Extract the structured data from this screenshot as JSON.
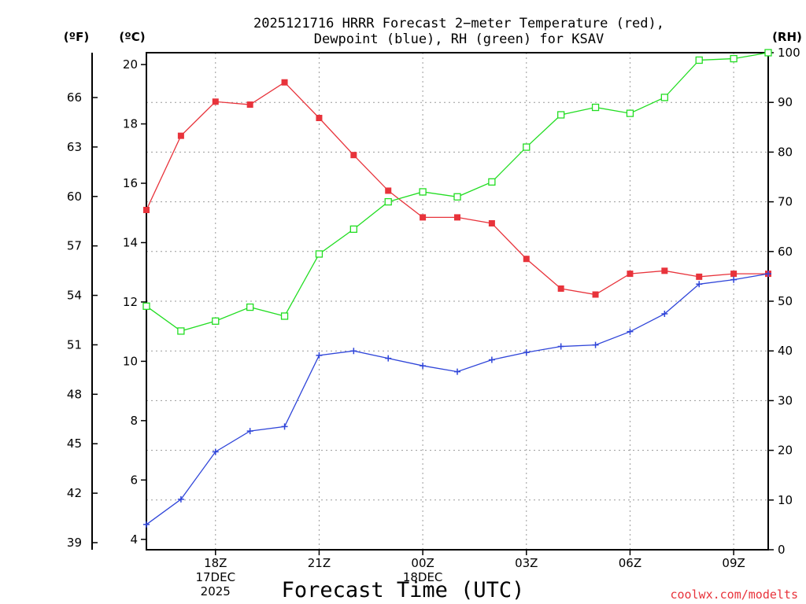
{
  "chart_data": {
    "type": "line",
    "title_line1": "2025121716 HRRR Forecast 2−meter Temperature (red),",
    "title_line2": "Dewpoint (blue), RH (green) for KSAV",
    "xlabel": "Forecast Time (UTC)",
    "credit": "coolwx.com/modelts",
    "units": {
      "fahrenheit": "(ºF)",
      "celsius": "(ºC)",
      "rh": "(RH)"
    },
    "x_hours": [
      16,
      17,
      18,
      19,
      20,
      21,
      22,
      23,
      24,
      25,
      26,
      27,
      28,
      29,
      30,
      31,
      32,
      33,
      34
    ],
    "x_range": [
      16,
      34
    ],
    "x_ticks": [
      {
        "hour": 18,
        "lines": [
          "18Z",
          "17DEC",
          "2025"
        ]
      },
      {
        "hour": 21,
        "lines": [
          "21Z"
        ]
      },
      {
        "hour": 24,
        "lines": [
          "00Z",
          "18DEC"
        ]
      },
      {
        "hour": 27,
        "lines": [
          "03Z"
        ]
      },
      {
        "hour": 30,
        "lines": [
          "06Z"
        ]
      },
      {
        "hour": 33,
        "lines": [
          "09Z"
        ]
      }
    ],
    "y_celsius": {
      "range": [
        3.65,
        20.4
      ],
      "ticks": [
        "4",
        "6",
        "8",
        "10",
        "12",
        "14",
        "16",
        "18",
        "20"
      ]
    },
    "y_fahrenheit": {
      "ticks": [
        "39",
        "42",
        "45",
        "48",
        "51",
        "54",
        "57",
        "60",
        "63",
        "66"
      ]
    },
    "y_rh": {
      "range": [
        0,
        100
      ],
      "ticks": [
        "0",
        "10",
        "20",
        "30",
        "40",
        "50",
        "60",
        "70",
        "80",
        "90",
        "100"
      ]
    },
    "grid": true,
    "series": [
      {
        "name": "2-meter Temperature",
        "axis": "celsius",
        "color": "#e8333b",
        "marker": "filled-square",
        "values": [
          15.1,
          17.6,
          18.75,
          18.65,
          19.4,
          18.2,
          16.95,
          15.75,
          14.85,
          14.85,
          14.65,
          13.45,
          12.45,
          12.25,
          12.95,
          13.05,
          12.85,
          12.95,
          12.95
        ]
      },
      {
        "name": "Dewpoint",
        "axis": "celsius",
        "color": "#2f45d9",
        "marker": "plus",
        "values": [
          4.5,
          5.35,
          6.95,
          7.65,
          7.8,
          10.2,
          10.35,
          10.1,
          9.85,
          9.65,
          10.05,
          10.3,
          10.5,
          10.55,
          11.0,
          11.6,
          12.6,
          12.75,
          12.95
        ]
      },
      {
        "name": "RH",
        "axis": "rh",
        "color": "#22dd22",
        "marker": "open-square",
        "values": [
          49.0,
          44.0,
          46.0,
          48.8,
          47.0,
          59.5,
          64.5,
          70.0,
          72.0,
          71.0,
          74.0,
          81.0,
          87.5,
          89.0,
          87.8,
          91.0,
          98.5,
          98.8,
          100.0
        ]
      }
    ]
  }
}
